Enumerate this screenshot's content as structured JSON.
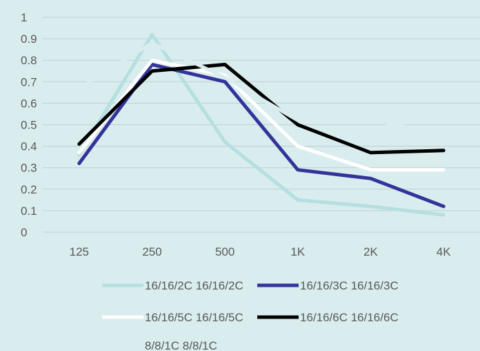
{
  "chart_data": {
    "type": "line",
    "title": "",
    "xlabel": "",
    "ylabel": "",
    "categories": [
      "125",
      "250",
      "500",
      "1K",
      "2K",
      "4K"
    ],
    "ylim": [
      0,
      1
    ],
    "yticks": [
      "0",
      "0.1",
      "0.2",
      "0.3",
      "0.4",
      "0.5",
      "0.6",
      "0.7",
      "0.8",
      "0.9",
      "1"
    ],
    "grid": true,
    "legend_position": "bottom",
    "series": [
      {
        "name": "16/16/2C 16/16/2C",
        "color": "#b5dfe0",
        "values": [
          0.36,
          0.92,
          0.42,
          0.15,
          0.12,
          0.08
        ]
      },
      {
        "name": "16/16/3C 16/16/3C",
        "color": "#333399",
        "values": [
          0.32,
          0.78,
          0.7,
          0.29,
          0.25,
          0.12
        ]
      },
      {
        "name": "16/16/5C 16/16/5C",
        "color": "#ffffff",
        "values": [
          0.37,
          0.8,
          0.73,
          0.4,
          0.29,
          0.29
        ]
      },
      {
        "name": "16/16/6C 16/16/6C",
        "color": "#000000",
        "values": [
          0.41,
          0.75,
          0.78,
          0.5,
          0.37,
          0.38
        ]
      },
      {
        "name": "8/8/1C 8/8/1C",
        "color": "#d9ecee",
        "values": [
          0.67,
          0.88,
          0.72,
          0.52,
          0.52,
          0.46
        ]
      }
    ]
  }
}
